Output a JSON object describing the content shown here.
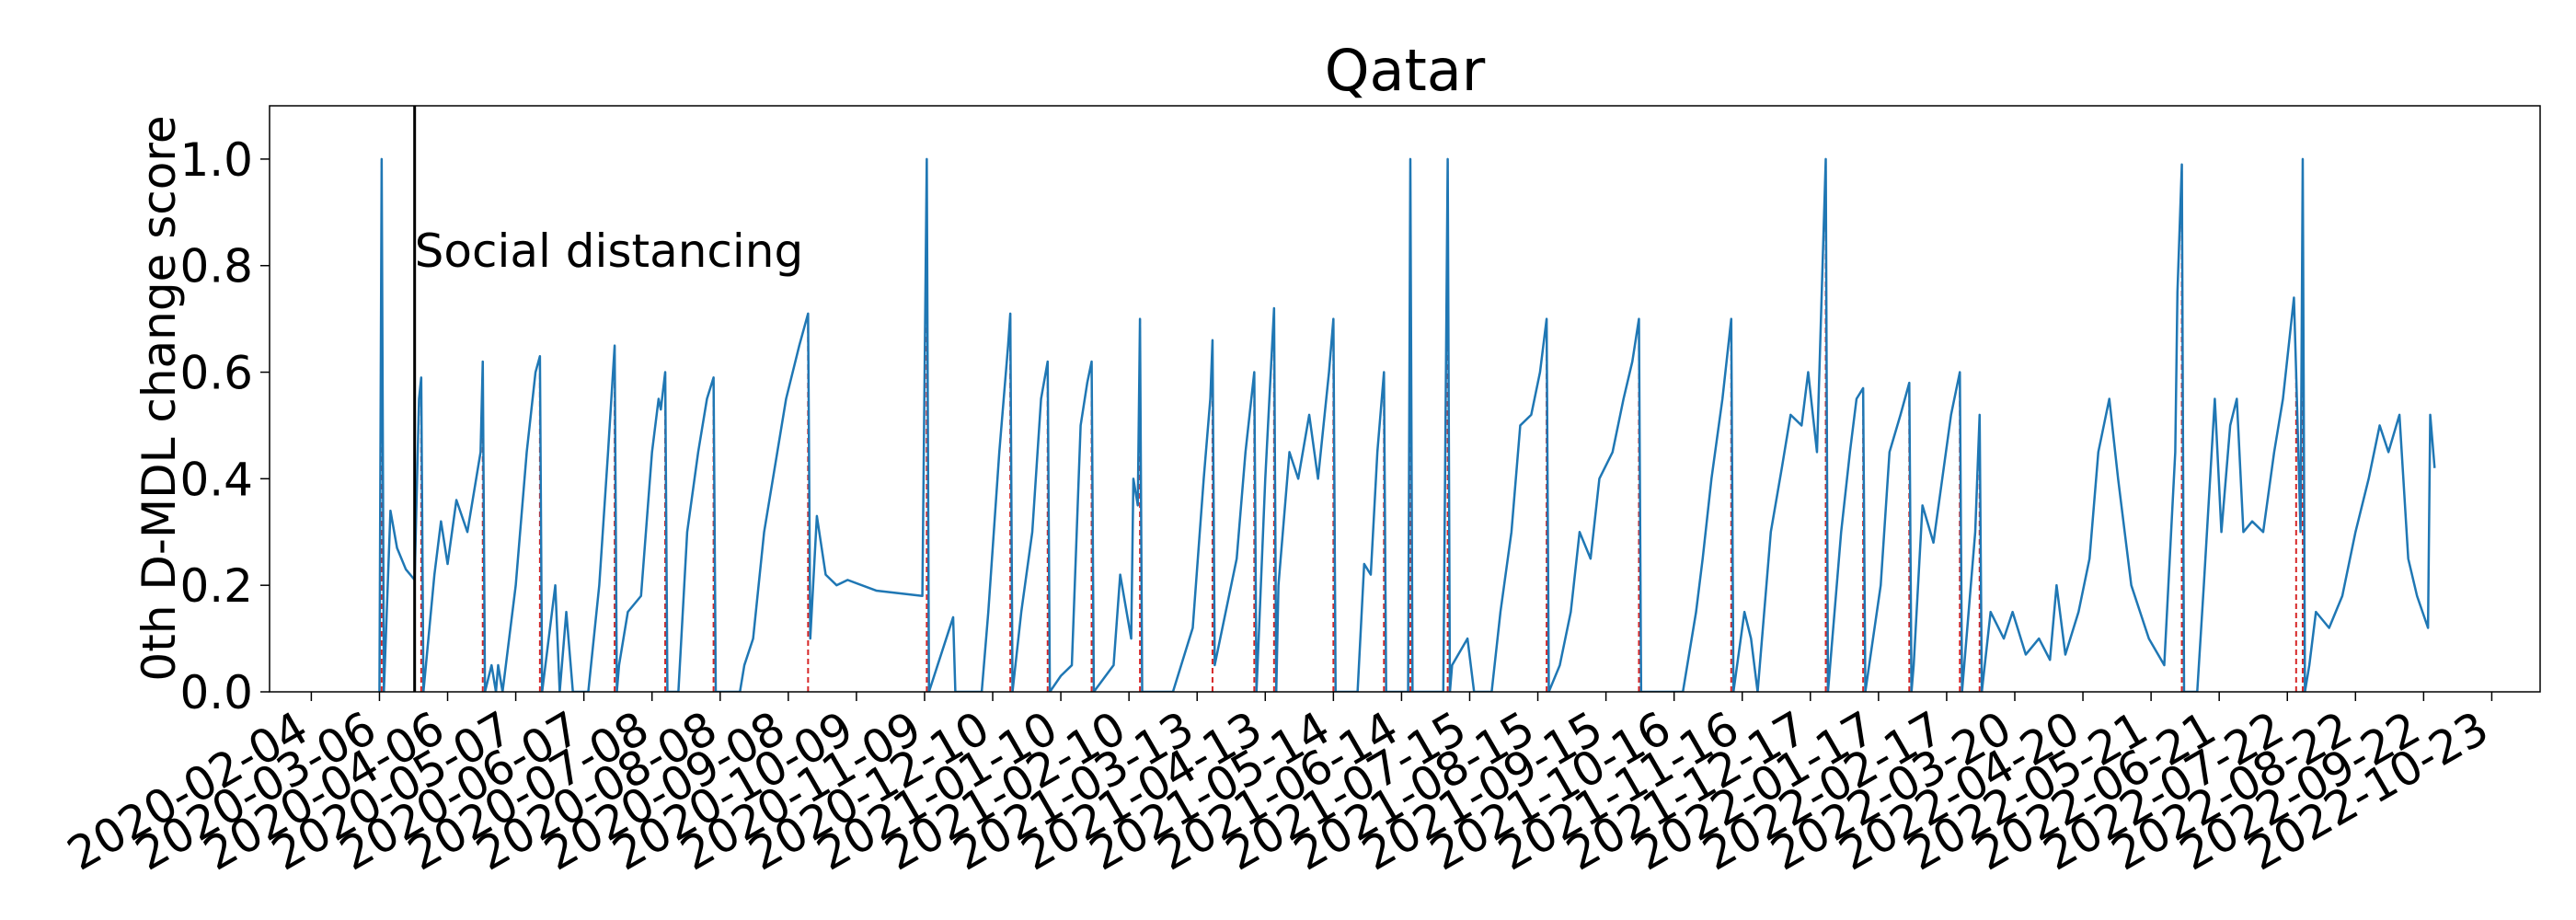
{
  "chart_data": {
    "type": "line",
    "title": "Qatar",
    "y_label": "0th D-MDL change score",
    "color": "#1f77b4",
    "change_point_color": "#d62728",
    "xlim": [
      "2020-01-16",
      "2022-11-14"
    ],
    "ylim": [
      0,
      1.1
    ],
    "xticks": [
      "2020-02-04",
      "2020-03-06",
      "2020-04-06",
      "2020-05-07",
      "2020-06-07",
      "2020-07-08",
      "2020-08-08",
      "2020-09-08",
      "2020-10-09",
      "2020-11-09",
      "2020-12-10",
      "2021-01-10",
      "2021-02-10",
      "2021-03-13",
      "2021-04-13",
      "2021-05-14",
      "2021-06-14",
      "2021-07-15",
      "2021-08-15",
      "2021-09-15",
      "2021-10-16",
      "2021-11-16",
      "2021-12-17",
      "2022-01-17",
      "2022-02-17",
      "2022-03-20",
      "2022-04-20",
      "2022-05-21",
      "2022-06-21",
      "2022-07-22",
      "2022-08-22",
      "2022-09-22",
      "2022-10-23"
    ],
    "yticks": [
      {
        "value": 0,
        "label": "0.0"
      },
      0.2,
      0.4,
      0.6,
      0.8,
      {
        "value": 1,
        "label": "1.0"
      }
    ],
    "annotations": [
      {
        "x": "2020-03-22",
        "label": "Social distancing"
      }
    ],
    "change_points": [
      "2020-03-07",
      "2020-03-25",
      "2020-04-22",
      "2020-05-18",
      "2020-06-21",
      "2020-07-14",
      "2020-08-05",
      "2020-09-17",
      "2020-11-10",
      "2020-12-18",
      "2021-01-04",
      "2021-01-24",
      "2021-02-15",
      "2021-03-20",
      "2021-04-08",
      "2021-04-17",
      "2021-05-14",
      "2021-06-06",
      "2021-06-18",
      "2021-07-05",
      "2021-08-19",
      "2021-09-30",
      "2021-11-11",
      "2021-12-24",
      "2022-01-10",
      "2022-01-31",
      "2022-02-23",
      "2022-03-04",
      "2022-06-04",
      "2022-07-26",
      "2022-07-29"
    ],
    "x": [
      "2020-03-06",
      "2020-03-07",
      "2020-03-08",
      "2020-03-11",
      "2020-03-14",
      "2020-03-18",
      "2020-03-22",
      "2020-03-23",
      "2020-03-24",
      "2020-03-25",
      "2020-03-26",
      "2020-03-31",
      "2020-04-03",
      "2020-04-06",
      "2020-04-10",
      "2020-04-15",
      "2020-04-21",
      "2020-04-22",
      "2020-04-23",
      "2020-04-26",
      "2020-04-28",
      "2020-04-29",
      "2020-05-01",
      "2020-05-07",
      "2020-05-12",
      "2020-05-16",
      "2020-05-18",
      "2020-05-19",
      "2020-05-25",
      "2020-05-27",
      "2020-05-30",
      "2020-06-02",
      "2020-06-09",
      "2020-06-14",
      "2020-06-18",
      "2020-06-21",
      "2020-06-22",
      "2020-06-23",
      "2020-06-27",
      "2020-07-03",
      "2020-07-08",
      "2020-07-11",
      "2020-07-12",
      "2020-07-14",
      "2020-07-15",
      "2020-07-20",
      "2020-07-24",
      "2020-07-29",
      "2020-08-02",
      "2020-08-05",
      "2020-08-06",
      "2020-08-17",
      "2020-08-19",
      "2020-08-23",
      "2020-08-28",
      "2020-09-03",
      "2020-09-07",
      "2020-09-13",
      "2020-09-17",
      "2020-09-18",
      "2020-09-21",
      "2020-09-25",
      "2020-09-30",
      "2020-10-05",
      "2020-10-18",
      "2020-11-08",
      "2020-11-10",
      "2020-11-11",
      "2020-11-22",
      "2020-11-23",
      "2020-12-05",
      "2020-12-08",
      "2020-12-13",
      "2020-12-17",
      "2020-12-18",
      "2020-12-19",
      "2020-12-23",
      "2020-12-28",
      "2021-01-01",
      "2021-01-04",
      "2021-01-05",
      "2021-01-10",
      "2021-01-15",
      "2021-01-19",
      "2021-01-22",
      "2021-01-24",
      "2021-01-25",
      "2021-02-03",
      "2021-02-06",
      "2021-02-11",
      "2021-02-12",
      "2021-02-14",
      "2021-02-15",
      "2021-02-16",
      "2021-03-02",
      "2021-03-08",
      "2021-03-11",
      "2021-03-16",
      "2021-03-19",
      "2021-03-20",
      "2021-03-21",
      "2021-03-26",
      "2021-03-31",
      "2021-04-04",
      "2021-04-08",
      "2021-04-09",
      "2021-04-13",
      "2021-04-17",
      "2021-04-18",
      "2021-04-19",
      "2021-04-24",
      "2021-04-28",
      "2021-05-03",
      "2021-05-07",
      "2021-05-12",
      "2021-05-14",
      "2021-05-15",
      "2021-05-25",
      "2021-05-28",
      "2021-05-31",
      "2021-06-03",
      "2021-06-06",
      "2021-06-07",
      "2021-06-17",
      "2021-06-18",
      "2021-06-19",
      "2021-07-03",
      "2021-07-05",
      "2021-07-06",
      "2021-07-07",
      "2021-07-14",
      "2021-07-17",
      "2021-07-25",
      "2021-07-29",
      "2021-08-03",
      "2021-08-07",
      "2021-08-12",
      "2021-08-16",
      "2021-08-19",
      "2021-08-20",
      "2021-08-25",
      "2021-08-30",
      "2021-09-03",
      "2021-09-08",
      "2021-09-12",
      "2021-09-18",
      "2021-09-23",
      "2021-09-27",
      "2021-09-30",
      "2021-10-01",
      "2021-10-20",
      "2021-10-26",
      "2021-10-29",
      "2021-11-02",
      "2021-11-07",
      "2021-11-11",
      "2021-11-12",
      "2021-11-17",
      "2021-11-20",
      "2021-11-23",
      "2021-11-29",
      "2021-12-04",
      "2021-12-08",
      "2021-12-13",
      "2021-12-16",
      "2021-12-20",
      "2021-12-24",
      "2021-12-25",
      "2021-12-31",
      "2022-01-04",
      "2022-01-07",
      "2022-01-10",
      "2022-01-11",
      "2022-01-18",
      "2022-01-22",
      "2022-01-27",
      "2022-01-31",
      "2022-02-01",
      "2022-02-02",
      "2022-02-06",
      "2022-02-11",
      "2022-02-15",
      "2022-02-19",
      "2022-02-23",
      "2022-02-24",
      "2022-03-02",
      "2022-03-04",
      "2022-03-05",
      "2022-03-09",
      "2022-03-15",
      "2022-03-19",
      "2022-03-25",
      "2022-03-31",
      "2022-04-05",
      "2022-04-08",
      "2022-04-12",
      "2022-04-18",
      "2022-04-23",
      "2022-04-27",
      "2022-05-02",
      "2022-05-06",
      "2022-05-12",
      "2022-05-20",
      "2022-05-27",
      "2022-06-01",
      "2022-06-02",
      "2022-06-04",
      "2022-06-05",
      "2022-06-11",
      "2022-06-14",
      "2022-06-19",
      "2022-06-22",
      "2022-06-26",
      "2022-06-29",
      "2022-07-02",
      "2022-07-06",
      "2022-07-11",
      "2022-07-16",
      "2022-07-20",
      "2022-07-25",
      "2022-07-26",
      "2022-07-28",
      "2022-07-29",
      "2022-07-30",
      "2022-08-01",
      "2022-08-04",
      "2022-08-10",
      "2022-08-16",
      "2022-08-22",
      "2022-08-28",
      "2022-09-02",
      "2022-09-06",
      "2022-09-11",
      "2022-09-15",
      "2022-09-19",
      "2022-09-24",
      "2022-09-25",
      "2022-09-27"
    ],
    "values": [
      0,
      1.0,
      0,
      0.34,
      0.27,
      0.23,
      0.21,
      0.38,
      0.55,
      0.59,
      0,
      0.22,
      0.32,
      0.24,
      0.36,
      0.3,
      0.45,
      0.62,
      0,
      0.05,
      0,
      0.05,
      0,
      0.2,
      0.45,
      0.6,
      0.63,
      0,
      0.2,
      0,
      0.15,
      0,
      0,
      0.2,
      0.45,
      0.65,
      0,
      0.05,
      0.15,
      0.18,
      0.45,
      0.55,
      0.53,
      0.6,
      0,
      0,
      0.3,
      0.45,
      0.55,
      0.59,
      0,
      0,
      0.05,
      0.1,
      0.3,
      0.45,
      0.55,
      0.65,
      0.71,
      0.1,
      0.33,
      0.22,
      0.2,
      0.21,
      0.19,
      0.18,
      1.0,
      0,
      0.14,
      0,
      0,
      0.15,
      0.45,
      0.65,
      0.71,
      0,
      0.15,
      0.3,
      0.55,
      0.62,
      0,
      0.03,
      0.05,
      0.5,
      0.58,
      0.62,
      0,
      0.05,
      0.22,
      0.1,
      0.4,
      0.35,
      0.7,
      0,
      0,
      0.08,
      0.12,
      0.4,
      0.55,
      0.66,
      0.05,
      0.15,
      0.25,
      0.45,
      0.6,
      0,
      0.4,
      0.72,
      0,
      0.2,
      0.45,
      0.4,
      0.52,
      0.4,
      0.6,
      0.7,
      0,
      0,
      0.24,
      0.22,
      0.45,
      0.6,
      0,
      0,
      1.0,
      0,
      0,
      1.0,
      0,
      0.05,
      0.1,
      0,
      0,
      0.15,
      0.3,
      0.5,
      0.52,
      0.6,
      0.7,
      0,
      0.05,
      0.15,
      0.3,
      0.25,
      0.4,
      0.45,
      0.55,
      0.62,
      0.7,
      0,
      0,
      0.15,
      0.25,
      0.4,
      0.55,
      0.7,
      0,
      0.15,
      0.1,
      0,
      0.3,
      0.42,
      0.52,
      0.5,
      0.6,
      0.45,
      1.0,
      0,
      0.3,
      0.45,
      0.55,
      0.57,
      0,
      0.2,
      0.45,
      0.52,
      0.58,
      0,
      0.05,
      0.35,
      0.28,
      0.4,
      0.52,
      0.6,
      0,
      0.3,
      0.52,
      0,
      0.15,
      0.1,
      0.15,
      0.07,
      0.1,
      0.06,
      0.2,
      0.07,
      0.15,
      0.25,
      0.45,
      0.55,
      0.4,
      0.2,
      0.1,
      0.05,
      0.45,
      0.75,
      0.99,
      0,
      0,
      0.2,
      0.55,
      0.3,
      0.5,
      0.55,
      0.3,
      0.32,
      0.3,
      0.45,
      0.55,
      0.74,
      0.6,
      0.3,
      1.0,
      0,
      0.05,
      0.15,
      0.12,
      0.18,
      0.3,
      0.4,
      0.5,
      0.45,
      0.52,
      0.25,
      0.18,
      0.12,
      0.52,
      0.42
    ]
  }
}
